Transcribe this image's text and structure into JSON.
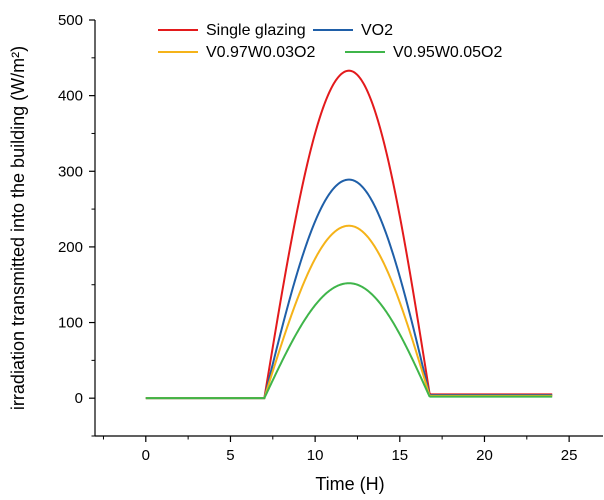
{
  "chart_data": {
    "type": "line",
    "xlabel": "Time (H)",
    "ylabel": "irradiation transmitted into the building (W/m²)",
    "xlim": [
      -3,
      27
    ],
    "ylim": [
      -50,
      500
    ],
    "xticks": [
      0,
      5,
      10,
      15,
      20,
      25
    ],
    "yticks": [
      0,
      100,
      200,
      300,
      400,
      500
    ],
    "x_tick_labels": [
      "0",
      "5",
      "10",
      "15",
      "20",
      "25"
    ],
    "y_tick_labels": [
      "0",
      "100",
      "200",
      "300",
      "400",
      "500"
    ],
    "grid": false,
    "legend_position": "top",
    "curve_model": "zero from 0 to 7 H, half-sine hump peaking at 12 H, ending at about 16.8 H, then a small constant level until 24 H",
    "x_range": [
      0,
      24
    ],
    "hump_start": 7,
    "hump_peak_x": 12,
    "hump_end": 16.8,
    "series": [
      {
        "name": "Single glazing",
        "color": "#e31a1c",
        "peak": 433,
        "night_level": 5
      },
      {
        "name": "VO2",
        "color": "#1f5fa8",
        "peak": 289,
        "night_level": 4
      },
      {
        "name": "V0.97W0.03O2",
        "color": "#f5b319",
        "peak": 228,
        "night_level": 3
      },
      {
        "name": "V0.95W0.05O2",
        "color": "#3fb54a",
        "peak": 152,
        "night_level": 2
      }
    ]
  }
}
